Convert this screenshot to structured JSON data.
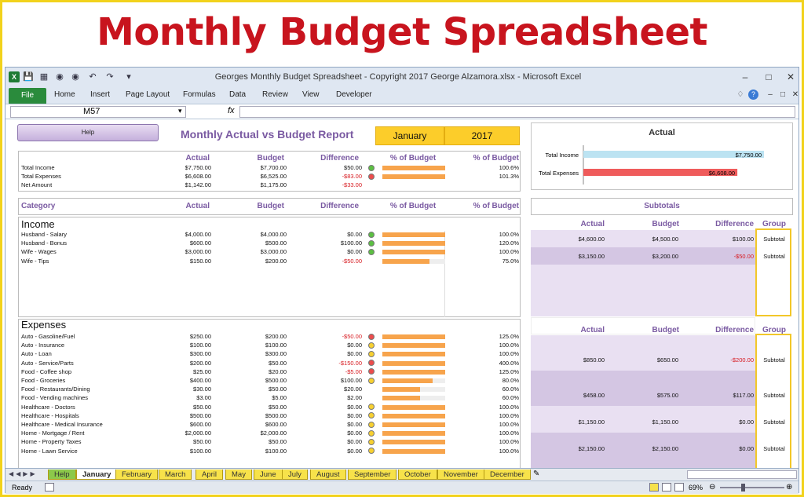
{
  "banner": {
    "title": "Monthly Budget Spreadsheet"
  },
  "window": {
    "title": "Georges Monthly Budget Spreadsheet - Copyright 2017 George Alzamora.xlsx  -  Microsoft Excel"
  },
  "ribbon": {
    "tabs": [
      "File",
      "Home",
      "Insert",
      "Page Layout",
      "Formulas",
      "Data",
      "Review",
      "View",
      "Developer"
    ]
  },
  "formula_bar": {
    "cell": "M57",
    "fx": "fx",
    "value": ""
  },
  "report": {
    "help_label": "Help",
    "title": "Monthly Actual vs Budget Report",
    "month": "January",
    "year": "2017"
  },
  "summary": {
    "headers": [
      "Actual",
      "Budget",
      "Difference",
      "% of Budget",
      "% of Budget"
    ],
    "rows": [
      {
        "label": "Total Income",
        "actual": "$7,750.00",
        "budget": "$7,700.00",
        "diff": "$50.00",
        "pct": "100.6%",
        "fill": 1.0,
        "dot": "g",
        "neg": false
      },
      {
        "label": "Total Expenses",
        "actual": "$6,608.00",
        "budget": "$6,525.00",
        "diff": "-$83.00",
        "pct": "101.3%",
        "fill": 1.0,
        "dot": "rd",
        "neg": true
      },
      {
        "label": "Net Amount",
        "actual": "$1,142.00",
        "budget": "$1,175.00",
        "diff": "-$33.00",
        "pct": "",
        "fill": 0,
        "dot": "",
        "neg": true
      }
    ]
  },
  "chart_data": {
    "type": "bar",
    "title": "Actual",
    "categories": [
      "Total Income",
      "Total Expenses"
    ],
    "values": [
      7750,
      6608
    ],
    "labels": [
      "$7,750.00",
      "$6,608.00"
    ],
    "colors": [
      "#bce3f2",
      "#ef5b5b"
    ],
    "xlim": [
      0,
      7750
    ]
  },
  "table": {
    "headers": [
      "Category",
      "Actual",
      "Budget",
      "Difference",
      "% of Budget",
      "% of Budget"
    ]
  },
  "income": {
    "title": "Income",
    "rows": [
      {
        "label": "Husband - Salary",
        "actual": "$4,000.00",
        "budget": "$4,000.00",
        "diff": "$0.00",
        "pct": "100.0%",
        "fill": 1.0,
        "dot": "g",
        "neg": false
      },
      {
        "label": "Husband - Bonus",
        "actual": "$600.00",
        "budget": "$500.00",
        "diff": "$100.00",
        "pct": "120.0%",
        "fill": 1.0,
        "dot": "g",
        "neg": false
      },
      {
        "label": "Wife - Wages",
        "actual": "$3,000.00",
        "budget": "$3,000.00",
        "diff": "$0.00",
        "pct": "100.0%",
        "fill": 1.0,
        "dot": "g",
        "neg": false
      },
      {
        "label": "Wife - Tips",
        "actual": "$150.00",
        "budget": "$200.00",
        "diff": "-$50.00",
        "pct": "75.0%",
        "fill": 0.75,
        "dot": "",
        "neg": true
      }
    ]
  },
  "expenses": {
    "title": "Expenses",
    "rows": [
      {
        "label": "Auto - Gasoline/Fuel",
        "actual": "$250.00",
        "budget": "$200.00",
        "diff": "-$50.00",
        "pct": "125.0%",
        "fill": 1.0,
        "dot": "rd",
        "neg": true
      },
      {
        "label": "Auto - Insurance",
        "actual": "$100.00",
        "budget": "$100.00",
        "diff": "$0.00",
        "pct": "100.0%",
        "fill": 1.0,
        "dot": "y",
        "neg": false
      },
      {
        "label": "Auto - Loan",
        "actual": "$300.00",
        "budget": "$300.00",
        "diff": "$0.00",
        "pct": "100.0%",
        "fill": 1.0,
        "dot": "y",
        "neg": false
      },
      {
        "label": "Auto - Service/Parts",
        "actual": "$200.00",
        "budget": "$50.00",
        "diff": "-$150.00",
        "pct": "400.0%",
        "fill": 1.0,
        "dot": "rd",
        "neg": true
      },
      {
        "label": "Food - Coffee shop",
        "actual": "$25.00",
        "budget": "$20.00",
        "diff": "-$5.00",
        "pct": "125.0%",
        "fill": 1.0,
        "dot": "rd",
        "neg": true
      },
      {
        "label": "Food - Groceries",
        "actual": "$400.00",
        "budget": "$500.00",
        "diff": "$100.00",
        "pct": "80.0%",
        "fill": 0.8,
        "dot": "y",
        "neg": false
      },
      {
        "label": "Food - Restaurants/Dining",
        "actual": "$30.00",
        "budget": "$50.00",
        "diff": "$20.00",
        "pct": "60.0%",
        "fill": 0.6,
        "dot": "",
        "neg": false
      },
      {
        "label": "Food - Vending machines",
        "actual": "$3.00",
        "budget": "$5.00",
        "diff": "$2.00",
        "pct": "60.0%",
        "fill": 0.6,
        "dot": "",
        "neg": false
      },
      {
        "label": "Healthcare - Doctors",
        "actual": "$50.00",
        "budget": "$50.00",
        "diff": "$0.00",
        "pct": "100.0%",
        "fill": 1.0,
        "dot": "y",
        "neg": false
      },
      {
        "label": "Healthcare - Hospitals",
        "actual": "$500.00",
        "budget": "$500.00",
        "diff": "$0.00",
        "pct": "100.0%",
        "fill": 1.0,
        "dot": "y",
        "neg": false
      },
      {
        "label": "Healthcare - Medical Insurance",
        "actual": "$600.00",
        "budget": "$600.00",
        "diff": "$0.00",
        "pct": "100.0%",
        "fill": 1.0,
        "dot": "y",
        "neg": false
      },
      {
        "label": "Home - Mortgage / Rent",
        "actual": "$2,000.00",
        "budget": "$2,000.00",
        "diff": "$0.00",
        "pct": "100.0%",
        "fill": 1.0,
        "dot": "y",
        "neg": false
      },
      {
        "label": "Home - Property Taxes",
        "actual": "$50.00",
        "budget": "$50.00",
        "diff": "$0.00",
        "pct": "100.0%",
        "fill": 1.0,
        "dot": "y",
        "neg": false
      },
      {
        "label": "Home - Lawn Service",
        "actual": "$100.00",
        "budget": "$100.00",
        "diff": "$0.00",
        "pct": "100.0%",
        "fill": 1.0,
        "dot": "y",
        "neg": false
      }
    ]
  },
  "subtotals": {
    "title": "Subtotals",
    "headers": [
      "Actual",
      "Budget",
      "Difference",
      "Group"
    ],
    "income": [
      {
        "actual": "$4,600.00",
        "budget": "$4,500.00",
        "diff": "$100.00",
        "group": "Subtotal",
        "neg": false
      },
      {
        "actual": "$3,150.00",
        "budget": "$3,200.00",
        "diff": "-$50.00",
        "group": "Subtotal",
        "neg": true
      }
    ],
    "expenses": [
      {
        "actual": "$850.00",
        "budget": "$650.00",
        "diff": "-$200.00",
        "group": "Subtotal",
        "neg": true
      },
      {
        "actual": "$458.00",
        "budget": "$575.00",
        "diff": "$117.00",
        "group": "Subtotal",
        "neg": false
      },
      {
        "actual": "$1,150.00",
        "budget": "$1,150.00",
        "diff": "$0.00",
        "group": "Subtotal",
        "neg": false
      },
      {
        "actual": "$2,150.00",
        "budget": "$2,150.00",
        "diff": "$0.00",
        "group": "Subtotal",
        "neg": false
      }
    ]
  },
  "sheet_tabs": [
    "Help",
    "January",
    "February",
    "March",
    "April",
    "May",
    "June",
    "July",
    "August",
    "September",
    "October",
    "November",
    "December"
  ],
  "active_tab": "January",
  "status": {
    "ready": "Ready",
    "zoom": "69%"
  }
}
